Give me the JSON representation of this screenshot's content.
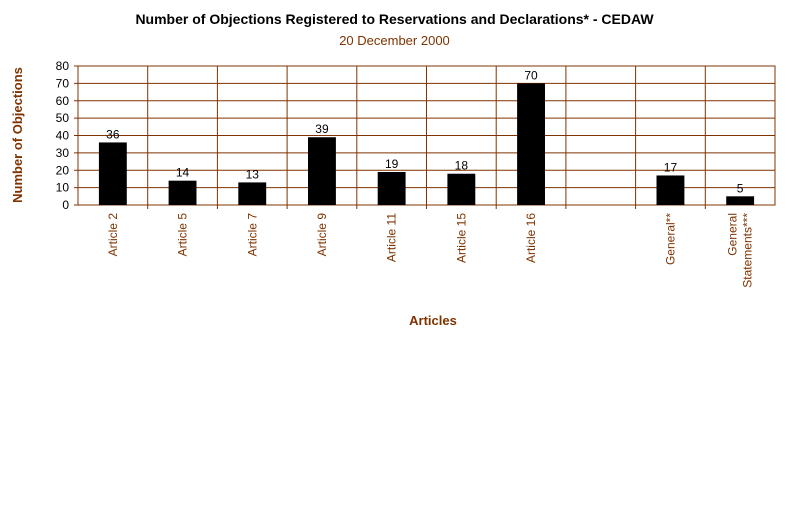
{
  "chart_data": {
    "type": "bar",
    "title": "Number of Objections Registered to Reservations and Declarations* - CEDAW",
    "subtitle": "20 December 2000",
    "xlabel": "Articles",
    "ylabel": "Number of Objections",
    "ylim": [
      0,
      80
    ],
    "yticks": [
      "0",
      "10",
      "20",
      "30",
      "40",
      "50",
      "60",
      "70",
      "80"
    ],
    "grid": true,
    "categories": [
      [
        "Article 2"
      ],
      [
        "Article 5"
      ],
      [
        "Article 7"
      ],
      [
        "Article 9"
      ],
      [
        "Article 11"
      ],
      [
        "Article 15"
      ],
      [
        "Article 16"
      ],
      [
        ""
      ],
      [
        "General**"
      ],
      [
        "General",
        "Statements***"
      ]
    ],
    "values": [
      36,
      14,
      13,
      39,
      19,
      18,
      70,
      null,
      17,
      5
    ],
    "value_labels": [
      "36",
      "14",
      "13",
      "39",
      "19",
      "18",
      "70",
      "",
      "17",
      "5"
    ],
    "colors": {
      "bar": "#000000",
      "grid": "#7f3300",
      "text": "#7f3300"
    }
  }
}
